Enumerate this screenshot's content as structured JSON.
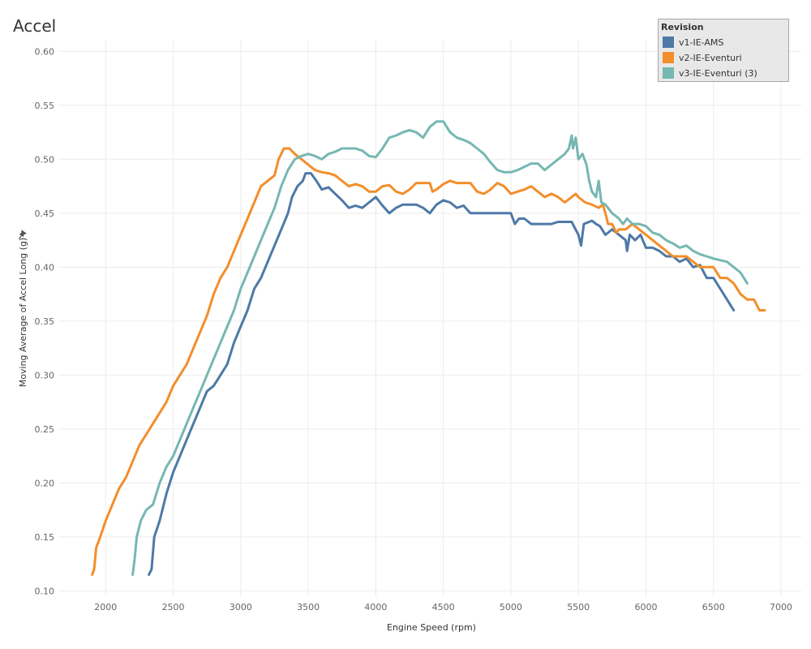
{
  "chart_data": {
    "type": "line",
    "title": "Accel",
    "xlabel": "Engine Speed (rpm)",
    "ylabel": "Moving Average of Accel Long (g)",
    "xlim": [
      1650,
      7150
    ],
    "ylim": [
      0.095,
      0.61
    ],
    "xticks": [
      2000,
      2500,
      3000,
      3500,
      4000,
      4500,
      5000,
      5500,
      6000,
      6500,
      7000
    ],
    "yticks": [
      0.1,
      0.15,
      0.2,
      0.25,
      0.3,
      0.35,
      0.4,
      0.45,
      0.5,
      0.55,
      0.6
    ],
    "ytick_labels": [
      "0.10",
      "0.15",
      "0.20",
      "0.25",
      "0.30",
      "0.35",
      "0.40",
      "0.45",
      "0.50",
      "0.55",
      "0.60"
    ],
    "grid": true,
    "legend": {
      "title": "Revision",
      "position": "top-right"
    },
    "series": [
      {
        "name": "v1-IE-AMS",
        "color": "#4e79a7",
        "points": [
          [
            2320,
            0.115
          ],
          [
            2340,
            0.12
          ],
          [
            2360,
            0.15
          ],
          [
            2400,
            0.165
          ],
          [
            2450,
            0.19
          ],
          [
            2500,
            0.21
          ],
          [
            2550,
            0.225
          ],
          [
            2600,
            0.24
          ],
          [
            2650,
            0.255
          ],
          [
            2700,
            0.27
          ],
          [
            2750,
            0.285
          ],
          [
            2800,
            0.29
          ],
          [
            2850,
            0.3
          ],
          [
            2900,
            0.31
          ],
          [
            2950,
            0.33
          ],
          [
            3000,
            0.345
          ],
          [
            3050,
            0.36
          ],
          [
            3100,
            0.38
          ],
          [
            3150,
            0.39
          ],
          [
            3200,
            0.405
          ],
          [
            3250,
            0.42
          ],
          [
            3300,
            0.435
          ],
          [
            3350,
            0.45
          ],
          [
            3380,
            0.465
          ],
          [
            3420,
            0.475
          ],
          [
            3460,
            0.48
          ],
          [
            3480,
            0.487
          ],
          [
            3520,
            0.487
          ],
          [
            3560,
            0.48
          ],
          [
            3600,
            0.472
          ],
          [
            3650,
            0.474
          ],
          [
            3700,
            0.468
          ],
          [
            3750,
            0.462
          ],
          [
            3800,
            0.455
          ],
          [
            3850,
            0.457
          ],
          [
            3900,
            0.455
          ],
          [
            3950,
            0.46
          ],
          [
            4000,
            0.465
          ],
          [
            4050,
            0.457
          ],
          [
            4100,
            0.45
          ],
          [
            4150,
            0.455
          ],
          [
            4200,
            0.458
          ],
          [
            4300,
            0.458
          ],
          [
            4350,
            0.455
          ],
          [
            4400,
            0.45
          ],
          [
            4450,
            0.458
          ],
          [
            4500,
            0.462
          ],
          [
            4550,
            0.46
          ],
          [
            4600,
            0.455
          ],
          [
            4650,
            0.457
          ],
          [
            4700,
            0.45
          ],
          [
            4800,
            0.45
          ],
          [
            5000,
            0.45
          ],
          [
            5030,
            0.44
          ],
          [
            5060,
            0.445
          ],
          [
            5100,
            0.445
          ],
          [
            5150,
            0.44
          ],
          [
            5300,
            0.44
          ],
          [
            5350,
            0.442
          ],
          [
            5450,
            0.442
          ],
          [
            5500,
            0.43
          ],
          [
            5520,
            0.42
          ],
          [
            5540,
            0.44
          ],
          [
            5600,
            0.443
          ],
          [
            5630,
            0.44
          ],
          [
            5660,
            0.438
          ],
          [
            5700,
            0.43
          ],
          [
            5750,
            0.435
          ],
          [
            5800,
            0.43
          ],
          [
            5850,
            0.425
          ],
          [
            5860,
            0.415
          ],
          [
            5880,
            0.43
          ],
          [
            5920,
            0.425
          ],
          [
            5960,
            0.43
          ],
          [
            6000,
            0.418
          ],
          [
            6050,
            0.418
          ],
          [
            6100,
            0.415
          ],
          [
            6150,
            0.41
          ],
          [
            6200,
            0.41
          ],
          [
            6250,
            0.405
          ],
          [
            6300,
            0.408
          ],
          [
            6350,
            0.4
          ],
          [
            6400,
            0.402
          ],
          [
            6450,
            0.39
          ],
          [
            6500,
            0.39
          ],
          [
            6550,
            0.38
          ],
          [
            6600,
            0.37
          ],
          [
            6650,
            0.36
          ]
        ]
      },
      {
        "name": "v2-IE-Eventuri",
        "color": "#f28e2b",
        "points": [
          [
            1900,
            0.115
          ],
          [
            1915,
            0.12
          ],
          [
            1930,
            0.14
          ],
          [
            1960,
            0.15
          ],
          [
            2000,
            0.165
          ],
          [
            2050,
            0.18
          ],
          [
            2100,
            0.195
          ],
          [
            2150,
            0.205
          ],
          [
            2200,
            0.22
          ],
          [
            2250,
            0.235
          ],
          [
            2300,
            0.245
          ],
          [
            2350,
            0.255
          ],
          [
            2400,
            0.265
          ],
          [
            2450,
            0.275
          ],
          [
            2500,
            0.29
          ],
          [
            2550,
            0.3
          ],
          [
            2600,
            0.31
          ],
          [
            2650,
            0.325
          ],
          [
            2700,
            0.34
          ],
          [
            2750,
            0.355
          ],
          [
            2800,
            0.375
          ],
          [
            2850,
            0.39
          ],
          [
            2900,
            0.4
          ],
          [
            2950,
            0.415
          ],
          [
            3000,
            0.43
          ],
          [
            3050,
            0.445
          ],
          [
            3100,
            0.46
          ],
          [
            3150,
            0.475
          ],
          [
            3200,
            0.48
          ],
          [
            3250,
            0.485
          ],
          [
            3280,
            0.5
          ],
          [
            3320,
            0.51
          ],
          [
            3360,
            0.51
          ],
          [
            3400,
            0.505
          ],
          [
            3450,
            0.5
          ],
          [
            3500,
            0.495
          ],
          [
            3550,
            0.49
          ],
          [
            3600,
            0.488
          ],
          [
            3650,
            0.487
          ],
          [
            3700,
            0.485
          ],
          [
            3750,
            0.48
          ],
          [
            3800,
            0.475
          ],
          [
            3850,
            0.477
          ],
          [
            3900,
            0.475
          ],
          [
            3950,
            0.47
          ],
          [
            4000,
            0.47
          ],
          [
            4050,
            0.475
          ],
          [
            4100,
            0.476
          ],
          [
            4150,
            0.47
          ],
          [
            4200,
            0.468
          ],
          [
            4250,
            0.472
          ],
          [
            4300,
            0.478
          ],
          [
            4400,
            0.478
          ],
          [
            4420,
            0.47
          ],
          [
            4450,
            0.472
          ],
          [
            4500,
            0.477
          ],
          [
            4550,
            0.48
          ],
          [
            4600,
            0.478
          ],
          [
            4700,
            0.478
          ],
          [
            4750,
            0.47
          ],
          [
            4800,
            0.468
          ],
          [
            4850,
            0.472
          ],
          [
            4900,
            0.478
          ],
          [
            4950,
            0.475
          ],
          [
            5000,
            0.468
          ],
          [
            5050,
            0.47
          ],
          [
            5100,
            0.472
          ],
          [
            5150,
            0.475
          ],
          [
            5200,
            0.47
          ],
          [
            5250,
            0.465
          ],
          [
            5300,
            0.468
          ],
          [
            5350,
            0.465
          ],
          [
            5400,
            0.46
          ],
          [
            5450,
            0.465
          ],
          [
            5480,
            0.468
          ],
          [
            5500,
            0.465
          ],
          [
            5550,
            0.46
          ],
          [
            5600,
            0.458
          ],
          [
            5650,
            0.455
          ],
          [
            5680,
            0.458
          ],
          [
            5700,
            0.45
          ],
          [
            5720,
            0.44
          ],
          [
            5750,
            0.44
          ],
          [
            5780,
            0.432
          ],
          [
            5800,
            0.435
          ],
          [
            5850,
            0.435
          ],
          [
            5900,
            0.44
          ],
          [
            5950,
            0.435
          ],
          [
            6000,
            0.43
          ],
          [
            6050,
            0.425
          ],
          [
            6100,
            0.42
          ],
          [
            6150,
            0.415
          ],
          [
            6200,
            0.41
          ],
          [
            6300,
            0.41
          ],
          [
            6350,
            0.405
          ],
          [
            6400,
            0.4
          ],
          [
            6500,
            0.4
          ],
          [
            6550,
            0.39
          ],
          [
            6600,
            0.39
          ],
          [
            6650,
            0.385
          ],
          [
            6700,
            0.375
          ],
          [
            6750,
            0.37
          ],
          [
            6800,
            0.37
          ],
          [
            6840,
            0.36
          ],
          [
            6880,
            0.36
          ]
        ]
      },
      {
        "name": "v3-IE-Eventuri (3)",
        "color": "#76b7b2",
        "points": [
          [
            2200,
            0.115
          ],
          [
            2215,
            0.13
          ],
          [
            2230,
            0.15
          ],
          [
            2260,
            0.165
          ],
          [
            2300,
            0.175
          ],
          [
            2350,
            0.18
          ],
          [
            2400,
            0.2
          ],
          [
            2450,
            0.215
          ],
          [
            2500,
            0.225
          ],
          [
            2550,
            0.24
          ],
          [
            2600,
            0.255
          ],
          [
            2650,
            0.27
          ],
          [
            2700,
            0.285
          ],
          [
            2750,
            0.3
          ],
          [
            2800,
            0.315
          ],
          [
            2850,
            0.33
          ],
          [
            2900,
            0.345
          ],
          [
            2950,
            0.36
          ],
          [
            3000,
            0.38
          ],
          [
            3050,
            0.395
          ],
          [
            3100,
            0.41
          ],
          [
            3150,
            0.425
          ],
          [
            3200,
            0.44
          ],
          [
            3250,
            0.455
          ],
          [
            3300,
            0.475
          ],
          [
            3350,
            0.49
          ],
          [
            3400,
            0.5
          ],
          [
            3450,
            0.503
          ],
          [
            3500,
            0.505
          ],
          [
            3550,
            0.503
          ],
          [
            3600,
            0.5
          ],
          [
            3650,
            0.505
          ],
          [
            3700,
            0.507
          ],
          [
            3750,
            0.51
          ],
          [
            3850,
            0.51
          ],
          [
            3900,
            0.508
          ],
          [
            3950,
            0.503
          ],
          [
            4000,
            0.502
          ],
          [
            4050,
            0.51
          ],
          [
            4100,
            0.52
          ],
          [
            4150,
            0.522
          ],
          [
            4200,
            0.525
          ],
          [
            4250,
            0.527
          ],
          [
            4300,
            0.525
          ],
          [
            4350,
            0.52
          ],
          [
            4400,
            0.53
          ],
          [
            4450,
            0.535
          ],
          [
            4500,
            0.535
          ],
          [
            4550,
            0.525
          ],
          [
            4600,
            0.52
          ],
          [
            4650,
            0.518
          ],
          [
            4700,
            0.515
          ],
          [
            4750,
            0.51
          ],
          [
            4800,
            0.505
          ],
          [
            4850,
            0.497
          ],
          [
            4900,
            0.49
          ],
          [
            4950,
            0.488
          ],
          [
            5000,
            0.488
          ],
          [
            5050,
            0.49
          ],
          [
            5100,
            0.493
          ],
          [
            5150,
            0.496
          ],
          [
            5200,
            0.496
          ],
          [
            5250,
            0.49
          ],
          [
            5300,
            0.495
          ],
          [
            5350,
            0.5
          ],
          [
            5400,
            0.505
          ],
          [
            5430,
            0.51
          ],
          [
            5450,
            0.522
          ],
          [
            5460,
            0.51
          ],
          [
            5480,
            0.52
          ],
          [
            5500,
            0.5
          ],
          [
            5530,
            0.505
          ],
          [
            5560,
            0.495
          ],
          [
            5580,
            0.48
          ],
          [
            5600,
            0.47
          ],
          [
            5630,
            0.465
          ],
          [
            5650,
            0.48
          ],
          [
            5670,
            0.46
          ],
          [
            5700,
            0.458
          ],
          [
            5750,
            0.45
          ],
          [
            5800,
            0.445
          ],
          [
            5830,
            0.44
          ],
          [
            5860,
            0.445
          ],
          [
            5900,
            0.44
          ],
          [
            5950,
            0.44
          ],
          [
            6000,
            0.438
          ],
          [
            6050,
            0.432
          ],
          [
            6100,
            0.43
          ],
          [
            6150,
            0.425
          ],
          [
            6200,
            0.422
          ],
          [
            6250,
            0.418
          ],
          [
            6300,
            0.42
          ],
          [
            6350,
            0.415
          ],
          [
            6400,
            0.412
          ],
          [
            6450,
            0.41
          ],
          [
            6500,
            0.408
          ],
          [
            6600,
            0.405
          ],
          [
            6650,
            0.4
          ],
          [
            6700,
            0.395
          ],
          [
            6750,
            0.385
          ]
        ]
      }
    ]
  }
}
